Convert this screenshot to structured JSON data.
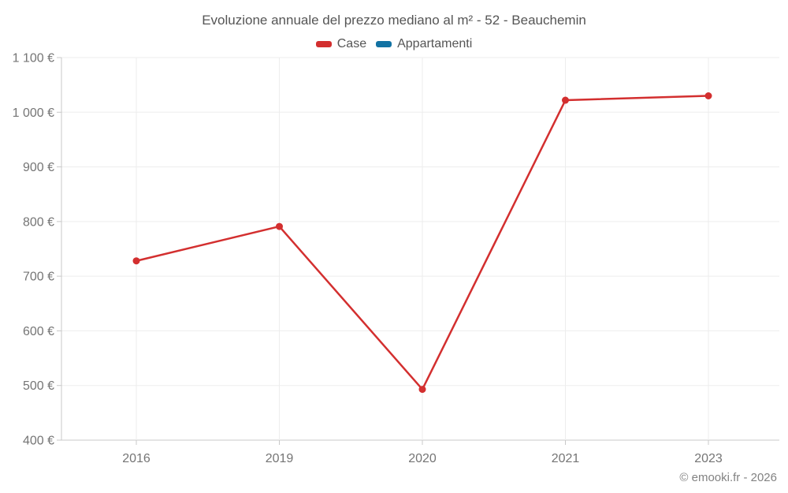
{
  "title": "Evoluzione annuale del prezzo mediano al m² - 52 - Beauchemin",
  "legend": [
    {
      "id": "case",
      "label": "Case",
      "color": "#d32f2f"
    },
    {
      "id": "appartamenti",
      "label": "Appartamenti",
      "color": "#1272a3"
    }
  ],
  "chart_data": {
    "type": "line",
    "categories": [
      "2016",
      "2019",
      "2020",
      "2021",
      "2023"
    ],
    "series": [
      {
        "name": "Case",
        "color": "#d32f2f",
        "values": [
          728,
          791,
          493,
          1022,
          1030
        ]
      },
      {
        "name": "Appartamenti",
        "color": "#1272a3",
        "values": []
      }
    ],
    "title": "Evoluzione annuale del prezzo mediano al m² - 52 - Beauchemin",
    "xlabel": "",
    "ylabel": "",
    "ylim": [
      400,
      1100
    ],
    "ytick_step": 100,
    "ytick_labels": [
      "400 €",
      "500 €",
      "600 €",
      "700 €",
      "800 €",
      "900 €",
      "1 000 €",
      "1 100 €"
    ],
    "grid": true,
    "legend_position": "top",
    "marker": "circle",
    "colors": {
      "gridline": "#ededed",
      "axis": "#c8c8c8",
      "tick_text": "#757575"
    }
  },
  "footer": {
    "copyright": "© emooki.fr - 2026"
  }
}
